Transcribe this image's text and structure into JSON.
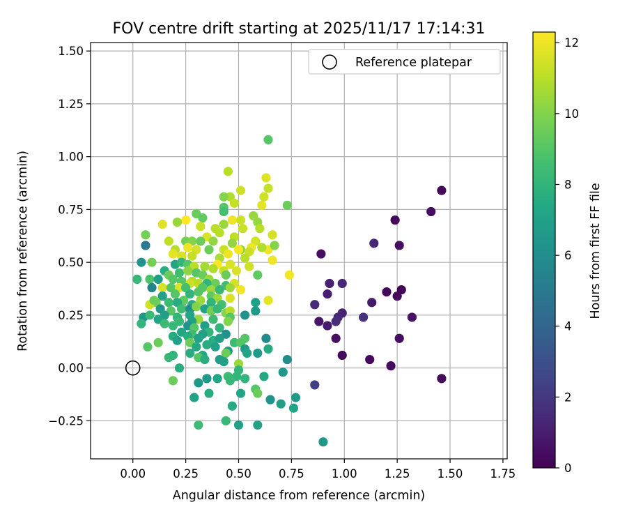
{
  "chart_data": {
    "type": "scatter",
    "title": "FOV centre drift starting at 2025/11/17 17:14:31",
    "xlabel": "Angular distance from reference (arcmin)",
    "ylabel": "Rotation from reference (arcmin)",
    "xlim": [
      -0.2,
      1.77
    ],
    "ylim": [
      -0.43,
      1.54
    ],
    "xticks": [
      0.0,
      0.25,
      0.5,
      0.75,
      1.0,
      1.25,
      1.5,
      1.75
    ],
    "xtick_labels": [
      "0.00",
      "0.25",
      "0.50",
      "0.75",
      "1.00",
      "1.25",
      "1.50",
      "1.75"
    ],
    "yticks": [
      -0.25,
      0.0,
      0.25,
      0.5,
      0.75,
      1.0,
      1.25,
      1.5
    ],
    "ytick_labels": [
      "−0.25",
      "0.00",
      "0.25",
      "0.50",
      "0.75",
      "1.00",
      "1.25",
      "1.50"
    ],
    "grid": true,
    "legend": {
      "placement": "top-right",
      "entries": [
        "Reference platepar"
      ]
    },
    "reference_point": {
      "x": 0.0,
      "y": 0.0,
      "label": "Reference platepar"
    },
    "colorbar": {
      "label": "Hours from first FF file",
      "range": [
        0,
        12.3
      ],
      "ticks": [
        0,
        2,
        4,
        6,
        8,
        10,
        12
      ],
      "tick_labels": [
        "0",
        "2",
        "4",
        "6",
        "8",
        "10",
        "12"
      ],
      "colormap": "viridis"
    },
    "points": [
      [
        1.46,
        0.84,
        0.2
      ],
      [
        1.41,
        0.74,
        0.4
      ],
      [
        1.24,
        0.7,
        0.3
      ],
      [
        1.26,
        0.58,
        0.5
      ],
      [
        1.14,
        0.59,
        1.4
      ],
      [
        1.27,
        0.37,
        0.1
      ],
      [
        1.2,
        0.36,
        0.2
      ],
      [
        1.25,
        0.34,
        0.3
      ],
      [
        1.13,
        0.31,
        0.9
      ],
      [
        0.89,
        0.54,
        0.5
      ],
      [
        0.93,
        0.4,
        1.1
      ],
      [
        0.99,
        0.4,
        1.3
      ],
      [
        0.92,
        0.35,
        1.0
      ],
      [
        0.86,
        0.3,
        1.5
      ],
      [
        0.99,
        0.26,
        1.2
      ],
      [
        0.97,
        0.24,
        1.4
      ],
      [
        0.96,
        0.22,
        1.6
      ],
      [
        0.88,
        0.22,
        0.7
      ],
      [
        0.92,
        0.2,
        0.9
      ],
      [
        1.09,
        0.24,
        1.8
      ],
      [
        1.32,
        0.24,
        0.6
      ],
      [
        0.96,
        0.14,
        0.5
      ],
      [
        1.26,
        0.14,
        0.4
      ],
      [
        0.99,
        0.06,
        0.3
      ],
      [
        1.12,
        0.04,
        0.3
      ],
      [
        1.22,
        0.01,
        0.4
      ],
      [
        1.46,
        -0.05,
        0.3
      ],
      [
        0.86,
        -0.08,
        2.3
      ],
      [
        0.9,
        -0.35,
        6.6
      ],
      [
        0.64,
        1.08,
        9.0
      ],
      [
        0.63,
        0.9,
        11.7
      ],
      [
        0.45,
        0.93,
        11.0
      ],
      [
        0.64,
        0.85,
        11.2
      ],
      [
        0.51,
        0.84,
        11.4
      ],
      [
        0.46,
        0.81,
        10.8
      ],
      [
        0.62,
        0.81,
        11.4
      ],
      [
        0.73,
        0.77,
        9.5
      ],
      [
        0.43,
        0.81,
        10.0
      ],
      [
        0.61,
        0.77,
        11.8
      ],
      [
        0.48,
        0.78,
        11.2
      ],
      [
        0.43,
        0.76,
        9.0
      ],
      [
        0.43,
        0.74,
        8.6
      ],
      [
        0.3,
        0.73,
        9.5
      ],
      [
        0.33,
        0.71,
        9.3
      ],
      [
        0.57,
        0.72,
        10.4
      ],
      [
        0.51,
        0.7,
        11.3
      ],
      [
        0.47,
        0.7,
        12.0
      ],
      [
        0.25,
        0.7,
        12.3
      ],
      [
        0.21,
        0.69,
        10.4
      ],
      [
        0.14,
        0.68,
        11.7
      ],
      [
        0.32,
        0.67,
        11.3
      ],
      [
        0.39,
        0.66,
        11.0
      ],
      [
        0.43,
        0.68,
        10.4
      ],
      [
        0.59,
        0.69,
        10.3
      ],
      [
        0.6,
        0.66,
        11.0
      ],
      [
        0.52,
        0.66,
        11.3
      ],
      [
        0.41,
        0.64,
        11.0
      ],
      [
        0.48,
        0.62,
        11.1
      ],
      [
        0.35,
        0.62,
        11.6
      ],
      [
        0.66,
        0.63,
        11.5
      ],
      [
        0.06,
        0.63,
        9.7
      ],
      [
        0.17,
        0.6,
        11.1
      ],
      [
        0.25,
        0.6,
        9.7
      ],
      [
        0.28,
        0.6,
        10.0
      ],
      [
        0.32,
        0.6,
        9.5
      ],
      [
        0.38,
        0.6,
        10.3
      ],
      [
        0.43,
        0.56,
        11.3
      ],
      [
        0.47,
        0.59,
        10.3
      ],
      [
        0.51,
        0.56,
        10.2
      ],
      [
        0.58,
        0.6,
        11.5
      ],
      [
        0.06,
        0.58,
        5.0
      ],
      [
        0.64,
        0.56,
        12.0
      ],
      [
        0.26,
        0.57,
        12.0
      ],
      [
        0.2,
        0.56,
        11.0
      ],
      [
        0.3,
        0.56,
        11.5
      ],
      [
        0.36,
        0.56,
        9.5
      ],
      [
        0.56,
        0.57,
        12.0
      ],
      [
        0.61,
        0.57,
        10.8
      ],
      [
        0.67,
        0.58,
        10.0
      ],
      [
        0.19,
        0.54,
        11.8
      ],
      [
        0.23,
        0.53,
        11.6
      ],
      [
        0.28,
        0.53,
        11.2
      ],
      [
        0.41,
        0.52,
        10.7
      ],
      [
        0.45,
        0.54,
        12.0
      ],
      [
        0.5,
        0.56,
        12.1
      ],
      [
        0.55,
        0.55,
        11.3
      ],
      [
        0.53,
        0.52,
        11.0
      ],
      [
        0.4,
        0.49,
        12.3
      ],
      [
        0.46,
        0.49,
        11.6
      ],
      [
        0.09,
        0.5,
        9.7
      ],
      [
        0.04,
        0.5,
        6.2
      ],
      [
        0.15,
        0.46,
        7.6
      ],
      [
        0.2,
        0.49,
        7.2
      ],
      [
        0.23,
        0.5,
        8.0
      ],
      [
        0.26,
        0.49,
        9.0
      ],
      [
        0.29,
        0.48,
        11.0
      ],
      [
        0.34,
        0.48,
        10.6
      ],
      [
        0.38,
        0.47,
        10.8
      ],
      [
        0.43,
        0.46,
        11.2
      ],
      [
        0.49,
        0.46,
        11.6
      ],
      [
        0.55,
        0.48,
        11.4
      ],
      [
        0.66,
        0.51,
        12.0
      ],
      [
        0.17,
        0.44,
        9.5
      ],
      [
        0.22,
        0.45,
        8.5
      ],
      [
        0.26,
        0.46,
        10.2
      ],
      [
        0.3,
        0.45,
        9.0
      ],
      [
        0.33,
        0.44,
        9.5
      ],
      [
        0.28,
        0.41,
        11.0
      ],
      [
        0.36,
        0.42,
        10.5
      ],
      [
        0.39,
        0.4,
        9.5
      ],
      [
        0.44,
        0.44,
        9.5
      ],
      [
        0.74,
        0.44,
        12.1
      ],
      [
        0.59,
        0.44,
        9.2
      ],
      [
        0.08,
        0.42,
        8.8
      ],
      [
        0.02,
        0.42,
        8.2
      ],
      [
        0.12,
        0.42,
        6.8
      ],
      [
        0.19,
        0.42,
        9.0
      ],
      [
        0.23,
        0.41,
        9.0
      ],
      [
        0.27,
        0.4,
        11.3
      ],
      [
        0.31,
        0.4,
        11.0
      ],
      [
        0.35,
        0.4,
        8.0
      ],
      [
        0.44,
        0.39,
        8.5
      ],
      [
        0.48,
        0.4,
        11.5
      ],
      [
        0.51,
        0.37,
        12.1
      ],
      [
        0.09,
        0.38,
        5.5
      ],
      [
        0.14,
        0.38,
        11.6
      ],
      [
        0.18,
        0.38,
        9.0
      ],
      [
        0.22,
        0.38,
        11.6
      ],
      [
        0.25,
        0.38,
        8.6
      ],
      [
        0.33,
        0.38,
        9.0
      ],
      [
        0.37,
        0.37,
        10.5
      ],
      [
        0.41,
        0.37,
        8.2
      ],
      [
        0.46,
        0.38,
        10.5
      ],
      [
        0.14,
        0.34,
        7.0
      ],
      [
        0.2,
        0.35,
        9.0
      ],
      [
        0.27,
        0.35,
        8.0
      ],
      [
        0.31,
        0.36,
        9.0
      ],
      [
        0.37,
        0.34,
        9.2
      ],
      [
        0.4,
        0.33,
        10.5
      ],
      [
        0.46,
        0.33,
        11.6
      ],
      [
        0.42,
        0.3,
        8.6
      ],
      [
        0.32,
        0.32,
        10.5
      ],
      [
        0.24,
        0.32,
        9.2
      ],
      [
        0.17,
        0.31,
        8.4
      ],
      [
        0.11,
        0.31,
        9.7
      ],
      [
        0.08,
        0.3,
        11.4
      ],
      [
        0.1,
        0.32,
        9.5
      ],
      [
        0.21,
        0.31,
        7.6
      ],
      [
        0.28,
        0.3,
        7.6
      ],
      [
        0.37,
        0.31,
        8.0
      ],
      [
        0.64,
        0.32,
        11.8
      ],
      [
        0.58,
        0.31,
        7.0
      ],
      [
        0.13,
        0.28,
        6.5
      ],
      [
        0.18,
        0.27,
        9.0
      ],
      [
        0.23,
        0.28,
        8.5
      ],
      [
        0.27,
        0.28,
        6.0
      ],
      [
        0.3,
        0.29,
        10.0
      ],
      [
        0.34,
        0.28,
        7.0
      ],
      [
        0.37,
        0.27,
        9.6
      ],
      [
        0.4,
        0.28,
        8.2
      ],
      [
        0.44,
        0.26,
        10.0
      ],
      [
        0.46,
        0.27,
        11.0
      ],
      [
        0.58,
        0.27,
        6.6
      ],
      [
        0.05,
        0.24,
        6.5
      ],
      [
        0.08,
        0.25,
        8.3
      ],
      [
        0.15,
        0.25,
        6.8
      ],
      [
        0.21,
        0.24,
        8.0
      ],
      [
        0.27,
        0.25,
        7.2
      ],
      [
        0.31,
        0.23,
        10.4
      ],
      [
        0.38,
        0.23,
        8.4
      ],
      [
        0.46,
        0.24,
        9.0
      ],
      [
        0.53,
        0.25,
        6.2
      ],
      [
        0.12,
        0.23,
        7.2
      ],
      [
        0.22,
        0.22,
        8.2
      ],
      [
        0.28,
        0.22,
        7.0
      ],
      [
        0.04,
        0.21,
        8.0
      ],
      [
        0.15,
        0.21,
        8.4
      ],
      [
        0.19,
        0.2,
        8.2
      ],
      [
        0.26,
        0.2,
        6.2
      ],
      [
        0.29,
        0.19,
        9.0
      ],
      [
        0.34,
        0.2,
        6.8
      ],
      [
        0.41,
        0.19,
        8.0
      ],
      [
        0.45,
        0.22,
        10.0
      ],
      [
        0.36,
        0.17,
        8.0
      ],
      [
        0.23,
        0.17,
        7.2
      ],
      [
        0.28,
        0.16,
        8.5
      ],
      [
        0.33,
        0.16,
        7.0
      ],
      [
        0.44,
        0.16,
        6.2
      ],
      [
        0.19,
        0.15,
        7.6
      ],
      [
        0.26,
        0.15,
        7.6
      ],
      [
        0.31,
        0.14,
        7.0
      ],
      [
        0.38,
        0.13,
        7.6
      ],
      [
        0.41,
        0.14,
        6.8
      ],
      [
        0.53,
        0.14,
        9.0
      ],
      [
        0.63,
        0.14,
        5.8
      ],
      [
        0.21,
        0.13,
        7.0
      ],
      [
        0.27,
        0.12,
        9.5
      ],
      [
        0.35,
        0.11,
        7.6
      ],
      [
        0.48,
        0.12,
        8.4
      ],
      [
        0.51,
        0.12,
        9.0
      ],
      [
        0.12,
        0.12,
        9.5
      ],
      [
        0.07,
        0.1,
        9.0
      ],
      [
        0.3,
        0.1,
        7.4
      ],
      [
        0.39,
        0.1,
        7.0
      ],
      [
        0.45,
        0.08,
        6.6
      ],
      [
        0.53,
        0.09,
        6.6
      ],
      [
        0.54,
        0.07,
        7.2
      ],
      [
        0.64,
        0.09,
        7.5
      ],
      [
        0.27,
        0.07,
        7.6
      ],
      [
        0.33,
        0.06,
        7.4
      ],
      [
        0.44,
        0.07,
        9.5
      ],
      [
        0.59,
        0.07,
        6.6
      ],
      [
        0.17,
        0.05,
        8.2
      ],
      [
        0.19,
        0.06,
        8.0
      ],
      [
        0.31,
        0.05,
        9.0
      ],
      [
        0.34,
        0.04,
        7.6
      ],
      [
        0.41,
        0.04,
        6.8
      ],
      [
        0.43,
        0.03,
        7.0
      ],
      [
        0.5,
        0.02,
        10.4
      ],
      [
        0.73,
        0.04,
        6.0
      ],
      [
        0.5,
        -0.01,
        8.0
      ],
      [
        0.71,
        -0.02,
        6.6
      ],
      [
        0.22,
        0.0,
        7.6
      ],
      [
        0.49,
        -0.04,
        8.0
      ],
      [
        0.53,
        -0.05,
        8.0
      ],
      [
        0.4,
        -0.05,
        7.2
      ],
      [
        0.35,
        -0.05,
        6.6
      ],
      [
        0.45,
        -0.04,
        8.4
      ],
      [
        0.46,
        -0.06,
        8.2
      ],
      [
        0.62,
        -0.04,
        7.4
      ],
      [
        0.31,
        -0.07,
        6.6
      ],
      [
        0.19,
        -0.06,
        9.5
      ],
      [
        0.58,
        -0.1,
        9.0
      ],
      [
        0.59,
        -0.12,
        9.5
      ],
      [
        0.51,
        -0.12,
        7.2
      ],
      [
        0.65,
        -0.15,
        6.2
      ],
      [
        0.77,
        -0.14,
        6.6
      ],
      [
        0.7,
        -0.17,
        6.8
      ],
      [
        0.29,
        -0.14,
        7.0
      ],
      [
        0.36,
        -0.12,
        7.6
      ],
      [
        0.47,
        -0.18,
        7.5
      ],
      [
        0.76,
        -0.19,
        7.2
      ],
      [
        0.44,
        -0.25,
        8.2
      ],
      [
        0.31,
        -0.27,
        8.4
      ],
      [
        0.5,
        -0.27,
        7.0
      ],
      [
        0.59,
        -0.27,
        7.0
      ]
    ]
  }
}
